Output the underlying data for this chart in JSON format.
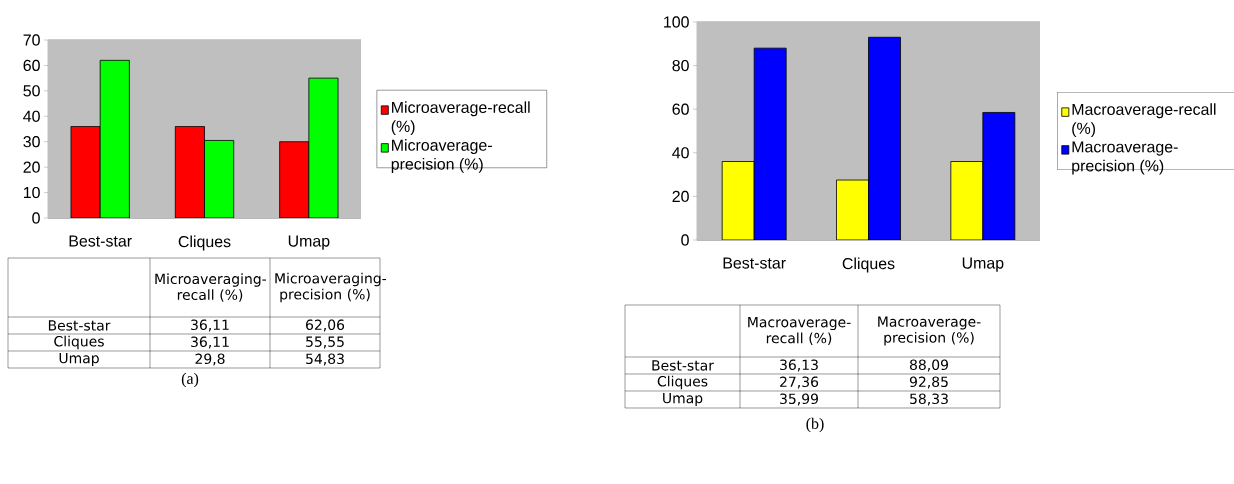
{
  "chart_data": [
    {
      "type": "bar",
      "categories": [
        "Best-star",
        "Cliques",
        "Umap"
      ],
      "series": [
        {
          "name": "Microaverage-recall (%)",
          "color": "#ff0000",
          "values": [
            36,
            36,
            30
          ]
        },
        {
          "name": "Microaverage-precision (%)",
          "color": "#00ff00",
          "values": [
            62,
            30.5,
            55
          ]
        }
      ],
      "ylim": [
        0,
        70
      ],
      "yticks": [
        0,
        10,
        20,
        30,
        40,
        50,
        60,
        70
      ],
      "grid": "y",
      "legend": "right",
      "annotations": [
        "Microaveraging-recall (%)",
        "Microaveraging-precision (%)",
        "36,11",
        "62,06",
        "36,11",
        "55,55",
        "29,8",
        "54,83",
        "(a)"
      ]
    },
    {
      "type": "bar",
      "categories": [
        "Best-star",
        "Cliques",
        "Umap"
      ],
      "series": [
        {
          "name": "Macroaverage-recall (%)",
          "color": "#ffff00",
          "values": [
            36,
            27.5,
            36
          ]
        },
        {
          "name": "Macroaverage-precision (%)",
          "color": "#0000ff",
          "values": [
            88,
            93,
            58.5
          ]
        }
      ],
      "ylim": [
        0,
        100
      ],
      "yticks": [
        0,
        20,
        40,
        60,
        80,
        100
      ],
      "grid": "y",
      "legend": "right",
      "annotations": [
        "Macroaverage-recall (%)",
        "Macroaverage-precision (%)",
        "36,13",
        "88,09",
        "27,36",
        "92,85",
        "35,99",
        "58,33",
        "(b)"
      ]
    }
  ]
}
